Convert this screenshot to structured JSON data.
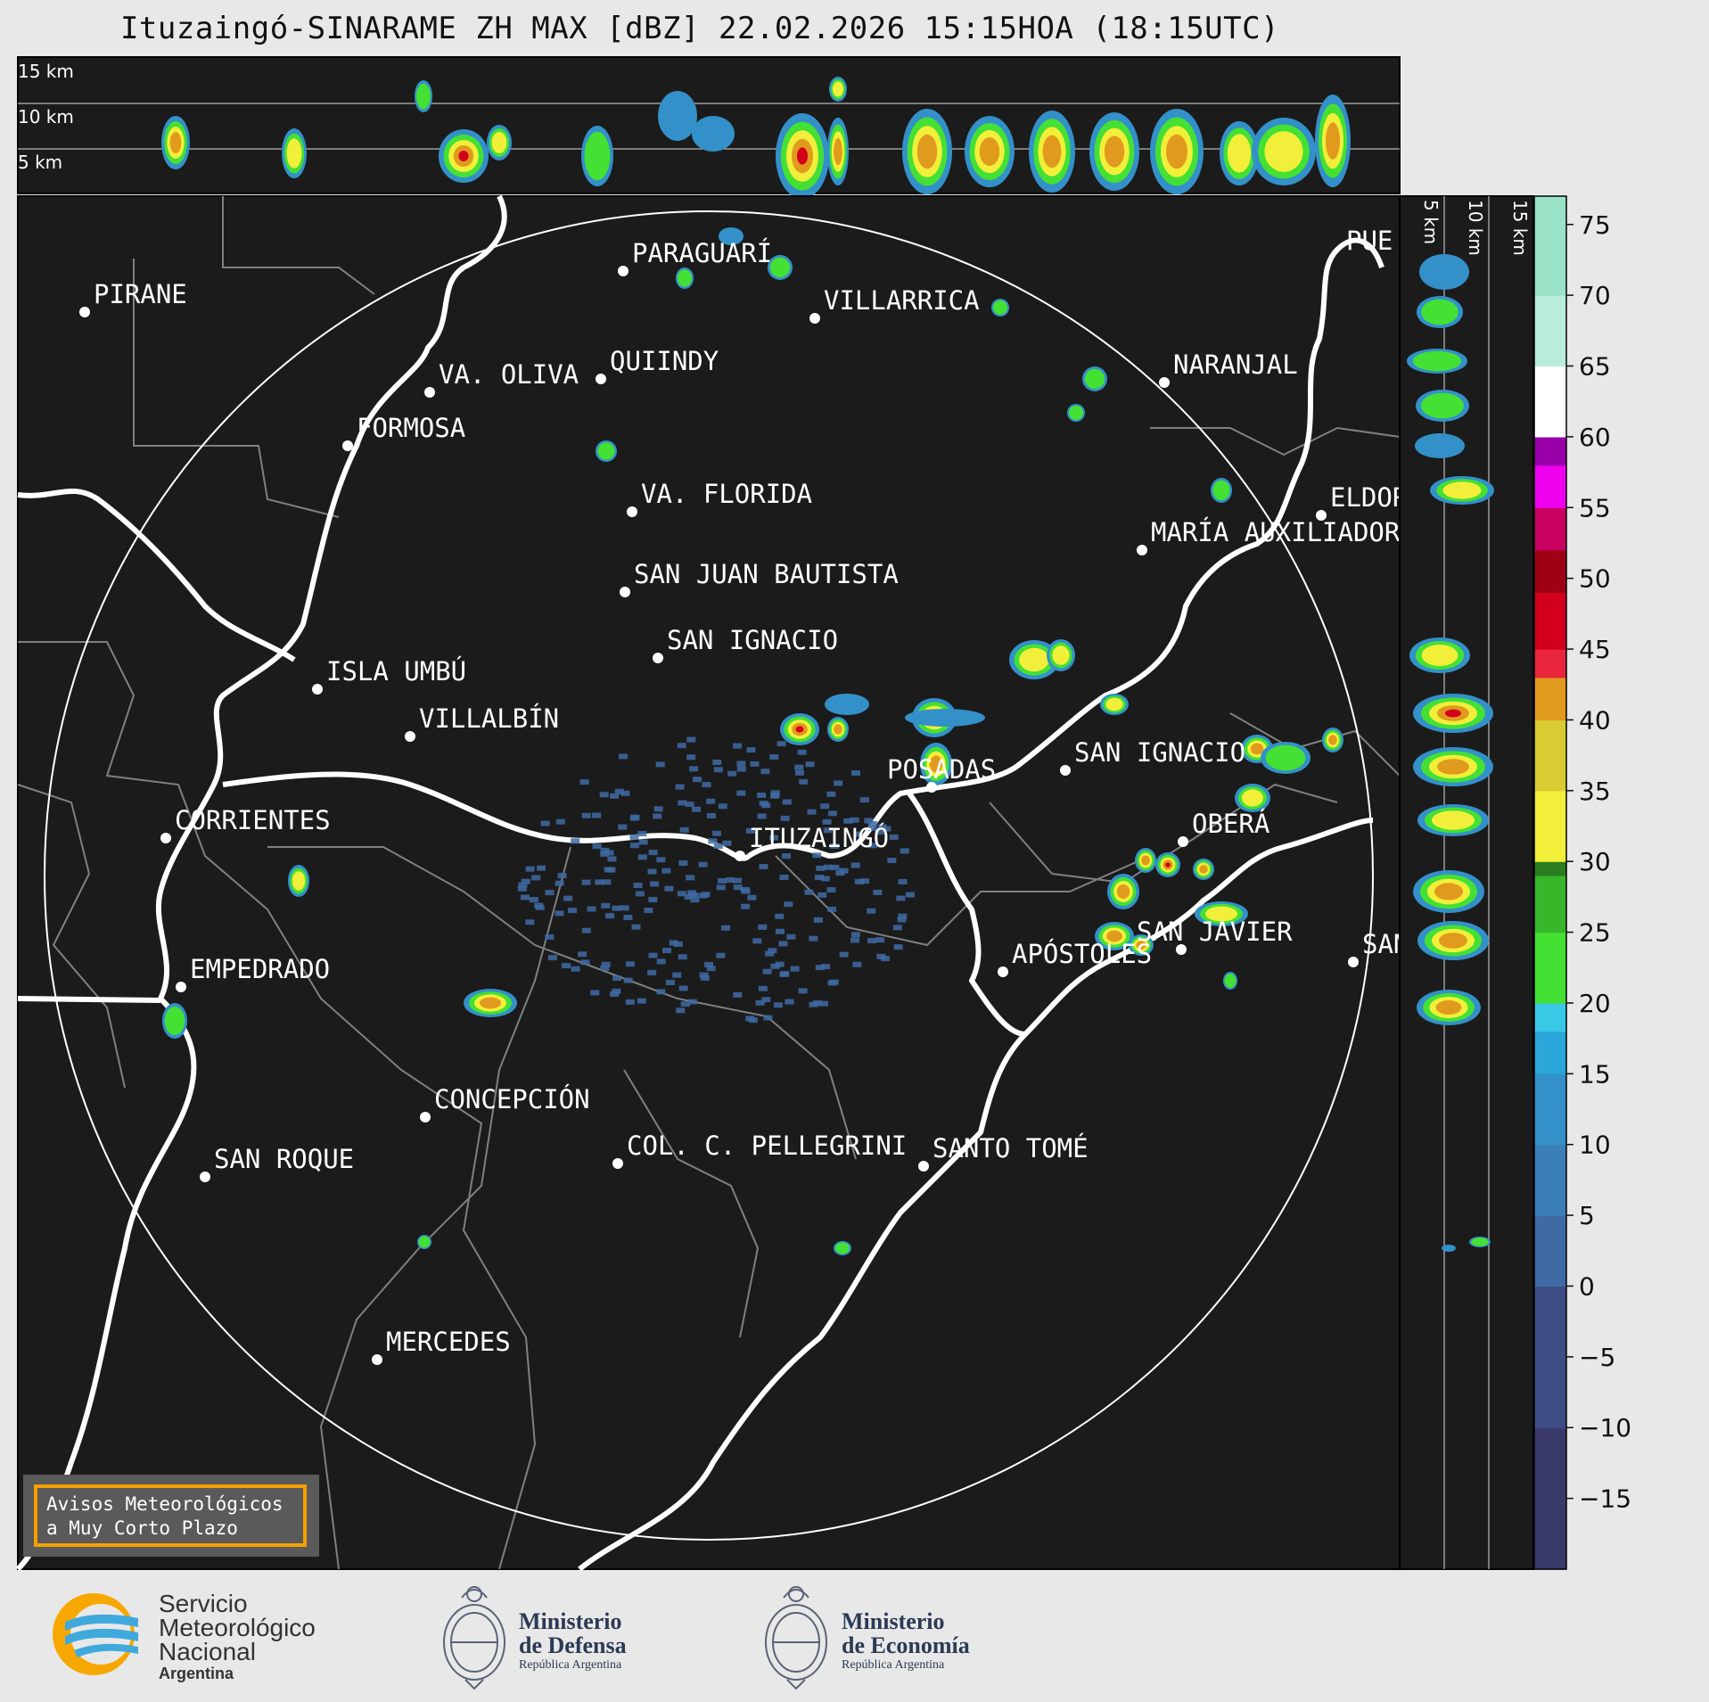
{
  "title": "Ituzaingó-SINARAME ZH MAX [dBZ] 22.02.2026 15:15HOA (18:15UTC)",
  "top_panel": {
    "altitude_labels": [
      "15 km",
      "10 km",
      "5 km"
    ]
  },
  "side_panel": {
    "altitude_labels": [
      "5 km",
      "10 km",
      "15 km"
    ]
  },
  "cities": [
    {
      "name": "PIRANE"
    },
    {
      "name": "PARAGUARÍ"
    },
    {
      "name": "VILLARRICA"
    },
    {
      "name": "QUIINDY"
    },
    {
      "name": "VA. OLIVA"
    },
    {
      "name": "NARANJAL"
    },
    {
      "name": "FORMOSA"
    },
    {
      "name": "VA. FLORIDA"
    },
    {
      "name": "ELDOR"
    },
    {
      "name": "MARÍA AUXILIADOR"
    },
    {
      "name": "SAN JUAN BAUTISTA"
    },
    {
      "name": "SAN IGNACIO"
    },
    {
      "name": "ISLA UMBÚ"
    },
    {
      "name": "VILLALBÍN"
    },
    {
      "name": "SAN IGNACIO"
    },
    {
      "name": "POSADAS"
    },
    {
      "name": "CORRIENTES"
    },
    {
      "name": "ITUZAINGÓ"
    },
    {
      "name": "OBERÁ"
    },
    {
      "name": "EMPEDRADO"
    },
    {
      "name": "APÓSTOLES"
    },
    {
      "name": "SAN JAVIER"
    },
    {
      "name": "SAN"
    },
    {
      "name": "CONCEPCIÓN"
    },
    {
      "name": "SAN ROQUE"
    },
    {
      "name": "COL. C. PELLEGRINI"
    },
    {
      "name": "SANTO TOMÉ"
    },
    {
      "name": "MERCEDES"
    },
    {
      "name": "PUE"
    }
  ],
  "colorbar": {
    "ticks": [
      "75",
      "70",
      "65",
      "60",
      "55",
      "50",
      "45",
      "40",
      "35",
      "30",
      "25",
      "20",
      "15",
      "10",
      "5",
      "0",
      "−5",
      "−10",
      "−15"
    ],
    "min": -20,
    "max": 77
  },
  "avisos_box": {
    "line1": "Avisos Meteorológicos",
    "line2": "a Muy Corto Plazo"
  },
  "logos": {
    "smn": {
      "line1": "Servicio",
      "line2": "Meteorológico",
      "line3": "Nacional",
      "line4": "Argentina"
    },
    "defensa": {
      "line1": "Ministerio",
      "line2": "de Defensa",
      "line3": "República Argentina"
    },
    "economia": {
      "line1": "Ministerio",
      "line2": "de Economía",
      "line3": "República Argentina"
    }
  }
}
